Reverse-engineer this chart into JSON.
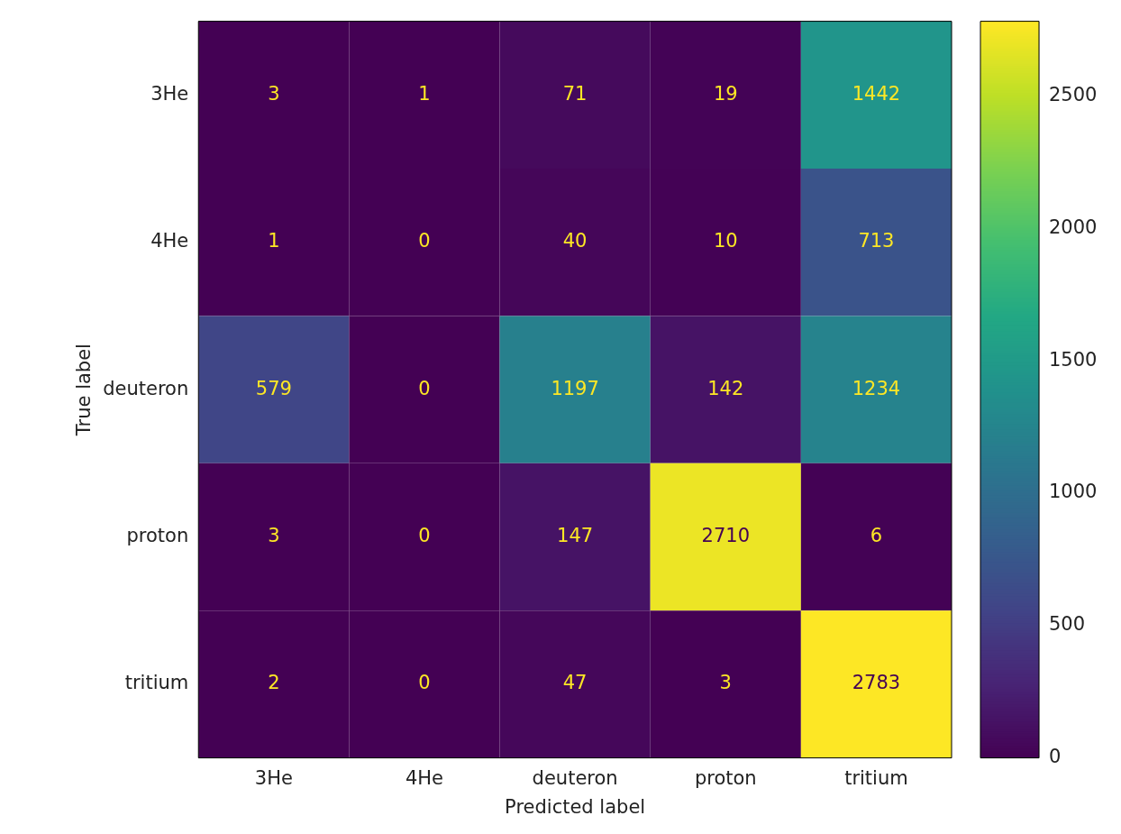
{
  "chart_data": {
    "type": "heatmap",
    "xlabel": "Predicted label",
    "ylabel": "True label",
    "categories": [
      "3He",
      "4He",
      "deuteron",
      "proton",
      "tritium"
    ],
    "y_categories": [
      "3He",
      "4He",
      "deuteron",
      "proton",
      "tritium"
    ],
    "cells": [
      [
        3,
        1,
        71,
        19,
        1442
      ],
      [
        1,
        0,
        40,
        10,
        713
      ],
      [
        579,
        0,
        1197,
        142,
        1234
      ],
      [
        3,
        0,
        147,
        2710,
        6
      ],
      [
        2,
        0,
        47,
        3,
        2783
      ]
    ],
    "data_labels": true,
    "clim": [
      0,
      2783
    ],
    "cticks": [
      0,
      500,
      1000,
      1500,
      2000,
      2500
    ]
  }
}
